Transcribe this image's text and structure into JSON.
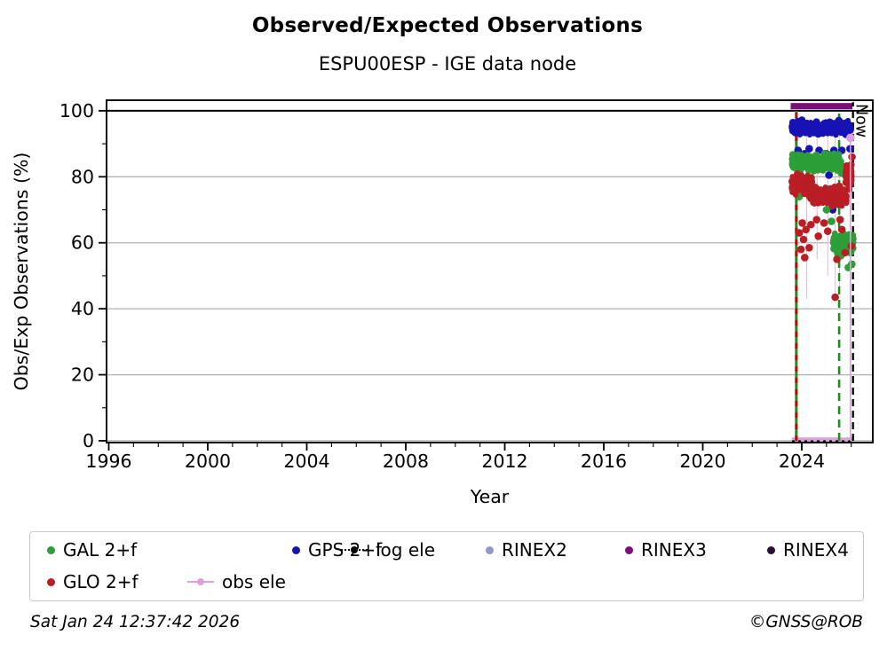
{
  "page": {
    "title": "Observed/Expected Observations",
    "subtitle": "ESPU00ESP - IGE data node",
    "footer_left": "Sat Jan 24 12:37:42 2026",
    "footer_right": "©GNSS@ROB"
  },
  "chart_data": {
    "type": "scatter",
    "title": "Observed/Expected Observations",
    "subtitle": "ESPU00ESP - IGE data node",
    "xlabel": "Year",
    "ylabel": "Obs/Exp Observations (%)",
    "xlim": [
      1995.91,
      2026.87
    ],
    "ylim": [
      -0.55,
      103.2
    ],
    "x_major_ticks": [
      1996,
      2000,
      2004,
      2008,
      2012,
      2016,
      2020,
      2024
    ],
    "x_minor_step": 1,
    "y_major_ticks": [
      0,
      20,
      40,
      60,
      80,
      100
    ],
    "y_minor_ticks": [
      10,
      30,
      50,
      70,
      90
    ],
    "grid_y_values": [
      0,
      20,
      40,
      60,
      80
    ],
    "gridline_color": "#b3b3b3",
    "hline_black_y": 100,
    "now_label": "Now",
    "series": [
      {
        "name": "GPS 2+f",
        "color": "#1613b6",
        "segments": [
          {
            "x0": 2023.6,
            "x1": 2025.97,
            "mean": 94.8,
            "spread": 1.7,
            "n": 620
          }
        ],
        "outliers": [
          [
            2023.85,
            88
          ],
          [
            2023.95,
            86
          ],
          [
            2024.02,
            83.5
          ],
          [
            2024.12,
            87
          ],
          [
            2024.25,
            84.2
          ],
          [
            2024.3,
            88.5
          ],
          [
            2024.55,
            86
          ],
          [
            2024.7,
            88
          ],
          [
            2024.78,
            83
          ],
          [
            2025.0,
            87
          ],
          [
            2025.1,
            80.5
          ],
          [
            2025.25,
            70
          ],
          [
            2025.3,
            88
          ],
          [
            2025.45,
            86
          ],
          [
            2025.55,
            75.5
          ],
          [
            2025.62,
            88
          ],
          [
            2025.88,
            78
          ],
          [
            2025.95,
            88.5
          ]
        ]
      },
      {
        "name": "GAL 2+f",
        "color": "#2d9e38",
        "segments": [
          {
            "x0": 2023.6,
            "x1": 2025.62,
            "mean": 84.2,
            "spread": 2.0,
            "n": 520
          },
          {
            "x0": 2025.28,
            "x1": 2026.08,
            "mean": 59.5,
            "spread": 2.4,
            "n": 230
          }
        ],
        "outliers": [
          [
            2023.9,
            74
          ],
          [
            2024.05,
            76
          ],
          [
            2024.5,
            75
          ],
          [
            2025.0,
            70
          ],
          [
            2025.2,
            66.5
          ],
          [
            2025.88,
            52.5
          ],
          [
            2026.02,
            53.5
          ]
        ]
      },
      {
        "name": "GLO 2+f",
        "color": "#b81e24",
        "segments": [
          {
            "x0": 2023.6,
            "x1": 2024.4,
            "mean": 77.5,
            "spread": 2.4,
            "n": 280
          },
          {
            "x0": 2024.35,
            "x1": 2025.8,
            "mean": 74.2,
            "spread": 2.4,
            "n": 430
          },
          {
            "x0": 2025.78,
            "x1": 2026.0,
            "mean": 80.0,
            "spread": 3.2,
            "n": 90
          }
        ],
        "outliers": [
          [
            2023.9,
            63
          ],
          [
            2023.97,
            58
          ],
          [
            2024.02,
            66
          ],
          [
            2024.07,
            61
          ],
          [
            2024.12,
            55.5
          ],
          [
            2024.17,
            64
          ],
          [
            2024.3,
            58.5
          ],
          [
            2024.37,
            65.5
          ],
          [
            2024.6,
            67
          ],
          [
            2024.67,
            62
          ],
          [
            2024.9,
            66
          ],
          [
            2025.05,
            63.5
          ],
          [
            2025.35,
            43.5
          ],
          [
            2025.42,
            55
          ],
          [
            2025.55,
            67
          ],
          [
            2025.62,
            64
          ],
          [
            2025.75,
            57
          ],
          [
            2026.0,
            59
          ],
          [
            2026.03,
            86
          ]
        ]
      }
    ],
    "vlines": [
      {
        "name": "start-line",
        "x": 2023.78,
        "y0": 0,
        "y1": 100,
        "color": "#1f8c1f",
        "width": 3,
        "dash": null,
        "overlay_color": "#cc0000",
        "overlay_dash": "6,7"
      },
      {
        "name": "green-dashed-line",
        "x": 2025.51,
        "y0": 0,
        "y1": 100,
        "color": "#1f8c1f",
        "width": 2.6,
        "dash": "9,6"
      },
      {
        "name": "now-line",
        "x": 2026.07,
        "y0": 0,
        "y1": 102.6,
        "color": "#000000",
        "width": 2.3,
        "dash": "8,5",
        "label": "Now"
      }
    ],
    "rinex3_bar": {
      "color": "#7d0d7d",
      "x0": 2023.55,
      "x1": 2026.05,
      "y_center": 101.4,
      "half_height": 0.95
    },
    "obs_ele": {
      "color": "#dda0dd",
      "vline_x": 2025.965,
      "vline_top": 91.8,
      "bar": {
        "x0": 2023.6,
        "x1": 2026.1,
        "y_center": 0.15,
        "half_height": 0.85
      }
    },
    "log_ele": {
      "color": "#000000",
      "y": 0,
      "x0": 2023.66,
      "x1": 2026.08,
      "dot_spacing_px": 7,
      "dot_r": 1.7
    },
    "stems": {
      "color": "#dcc3d8",
      "items": [
        {
          "x": 2024.2,
          "y0": 43,
          "y1": 95
        },
        {
          "x": 2024.62,
          "y0": 55,
          "y1": 95
        },
        {
          "x": 2025.05,
          "y0": 50,
          "y1": 95
        },
        {
          "x": 2025.35,
          "y0": 43.5,
          "y1": 94
        },
        {
          "x": 2025.52,
          "y0": 45,
          "y1": 94
        }
      ]
    }
  },
  "legend": {
    "rows": [
      [
        {
          "label": "GAL 2+f",
          "marker": "dot",
          "color": "#2d9e38"
        },
        {
          "label": "GPS 2+f",
          "marker": "dot",
          "color": "#1613b6"
        },
        {
          "label": "log ele",
          "marker": "dotted-line",
          "color": "#000000"
        },
        {
          "label": "RINEX2",
          "marker": "dot",
          "color": "#9494d2"
        },
        {
          "label": "RINEX3",
          "marker": "dot",
          "color": "#7d0d7d"
        },
        {
          "label": "RINEX4",
          "marker": "dot",
          "color": "#2c0e35"
        }
      ],
      [
        {
          "label": "GLO 2+f",
          "marker": "dot",
          "color": "#b81e24"
        },
        {
          "label": "obs ele",
          "marker": "line-dot",
          "color": "#dda0dd"
        }
      ]
    ],
    "row1_lefts": [
      19,
      295,
      350,
      513,
      670,
      830
    ],
    "row2_lefts": [
      19,
      177
    ],
    "row_tops": [
      7,
      43
    ]
  }
}
